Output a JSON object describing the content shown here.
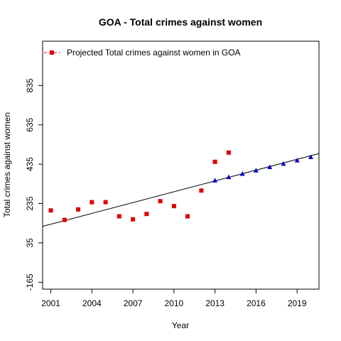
{
  "chart_data": {
    "type": "scatter",
    "title": "GOA  -  Total crimes against women",
    "xlabel": "Year",
    "ylabel": "Total crimes against women",
    "xlim": [
      2000.4,
      2020.6
    ],
    "ylim": [
      -200,
      1060
    ],
    "x_ticks": [
      2001,
      2004,
      2007,
      2010,
      2013,
      2016,
      2019
    ],
    "y_ticks": [
      -165,
      35,
      235,
      435,
      635,
      835
    ],
    "grid": false,
    "legend": {
      "position": "top-left",
      "entries": [
        "Projected  Total crimes against women  in  GOA"
      ]
    },
    "series": [
      {
        "marker": "square",
        "color": "#dd0000",
        "x": [
          2001,
          2002,
          2003,
          2004,
          2005,
          2006,
          2007,
          2008,
          2009,
          2010,
          2011,
          2012,
          2013,
          2014
        ],
        "y": [
          200,
          152,
          205,
          242,
          242,
          170,
          155,
          182,
          247,
          222,
          170,
          301,
          447,
          494
        ]
      },
      {
        "marker": "triangle",
        "color": "#0000cc",
        "x": [
          2013,
          2014,
          2015,
          2016,
          2017,
          2018,
          2019,
          2020
        ],
        "y": [
          351,
          368,
          385,
          402,
          419,
          436,
          453,
          470
        ]
      }
    ],
    "trend_line": {
      "color": "#000000",
      "points": [
        [
          2000.4,
          119
        ],
        [
          2020.6,
          489
        ]
      ]
    }
  }
}
